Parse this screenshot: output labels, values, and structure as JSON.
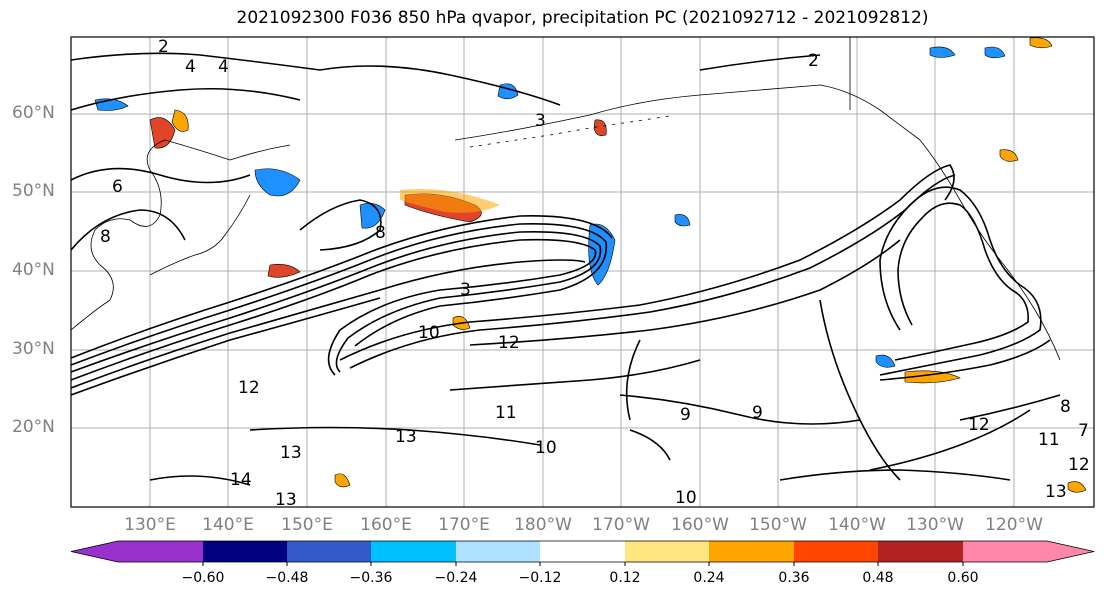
{
  "title": "2021092300 F036 850 hPa qvapor, precipitation PC (2021092712 - 2021092812)",
  "lat_labels": [
    "60°N",
    "50°N",
    "40°N",
    "30°N",
    "20°N"
  ],
  "lon_labels": [
    "130°E",
    "140°E",
    "150°E",
    "160°E",
    "170°E",
    "180°W",
    "170°W",
    "160°W",
    "150°W",
    "140°W",
    "130°W",
    "120°W"
  ],
  "colorbar": {
    "ticks": [
      "−0.60",
      "−0.48",
      "−0.36",
      "−0.24",
      "−0.12",
      "0.12",
      "0.24",
      "0.36",
      "0.48",
      "0.60"
    ],
    "colors": [
      "#9932cc",
      "#000080",
      "#3559c7",
      "#00bfff",
      "#b0e0ff",
      "#ffffff",
      "#ffe680",
      "#ffa500",
      "#ff4500",
      "#b22222",
      "#ff88aa"
    ]
  },
  "contour_labels": [
    "2",
    "4",
    "4",
    "2",
    "3",
    "3",
    "6",
    "8",
    "8",
    "10",
    "12",
    "11",
    "10",
    "9",
    "10",
    "13",
    "14",
    "13",
    "12",
    "13",
    "12",
    "12",
    "13",
    "11",
    "9",
    "8",
    "7"
  ],
  "shading_colors": {
    "negative_strong": "#1e90ff",
    "negative_light": "#87ceeb",
    "positive_light": "#ffd75a",
    "positive_mid": "#ffa500",
    "positive_strong": "#e0452a"
  }
}
